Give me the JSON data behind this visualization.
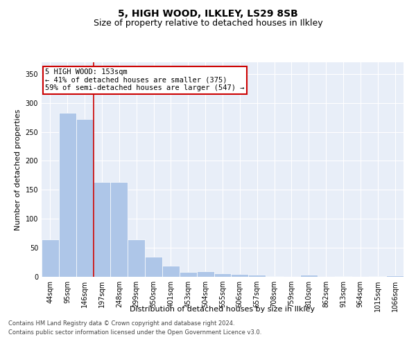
{
  "title": "5, HIGH WOOD, ILKLEY, LS29 8SB",
  "subtitle": "Size of property relative to detached houses in Ilkley",
  "xlabel": "Distribution of detached houses by size in Ilkley",
  "ylabel": "Number of detached properties",
  "footnote1": "Contains HM Land Registry data © Crown copyright and database right 2024.",
  "footnote2": "Contains public sector information licensed under the Open Government Licence v3.0.",
  "annotation_line1": "5 HIGH WOOD: 153sqm",
  "annotation_line2": "← 41% of detached houses are smaller (375)",
  "annotation_line3": "59% of semi-detached houses are larger (547) →",
  "bar_color": "#aec6e8",
  "line_color": "#cc0000",
  "box_edge_color": "#cc0000",
  "categories": [
    "44sqm",
    "95sqm",
    "146sqm",
    "197sqm",
    "248sqm",
    "299sqm",
    "350sqm",
    "401sqm",
    "453sqm",
    "504sqm",
    "555sqm",
    "606sqm",
    "657sqm",
    "708sqm",
    "759sqm",
    "810sqm",
    "862sqm",
    "913sqm",
    "964sqm",
    "1015sqm",
    "1066sqm"
  ],
  "values": [
    65,
    283,
    272,
    163,
    163,
    65,
    35,
    19,
    8,
    9,
    6,
    5,
    4,
    1,
    0,
    3,
    0,
    1,
    0,
    1,
    2
  ],
  "property_bar_index": 2,
  "ylim": [
    0,
    370
  ],
  "yticks": [
    0,
    50,
    100,
    150,
    200,
    250,
    300,
    350
  ],
  "background_color": "#e8eef8",
  "grid_color": "#ffffff",
  "title_fontsize": 10,
  "subtitle_fontsize": 9,
  "axis_label_fontsize": 8,
  "tick_fontsize": 7,
  "annotation_fontsize": 7.5
}
